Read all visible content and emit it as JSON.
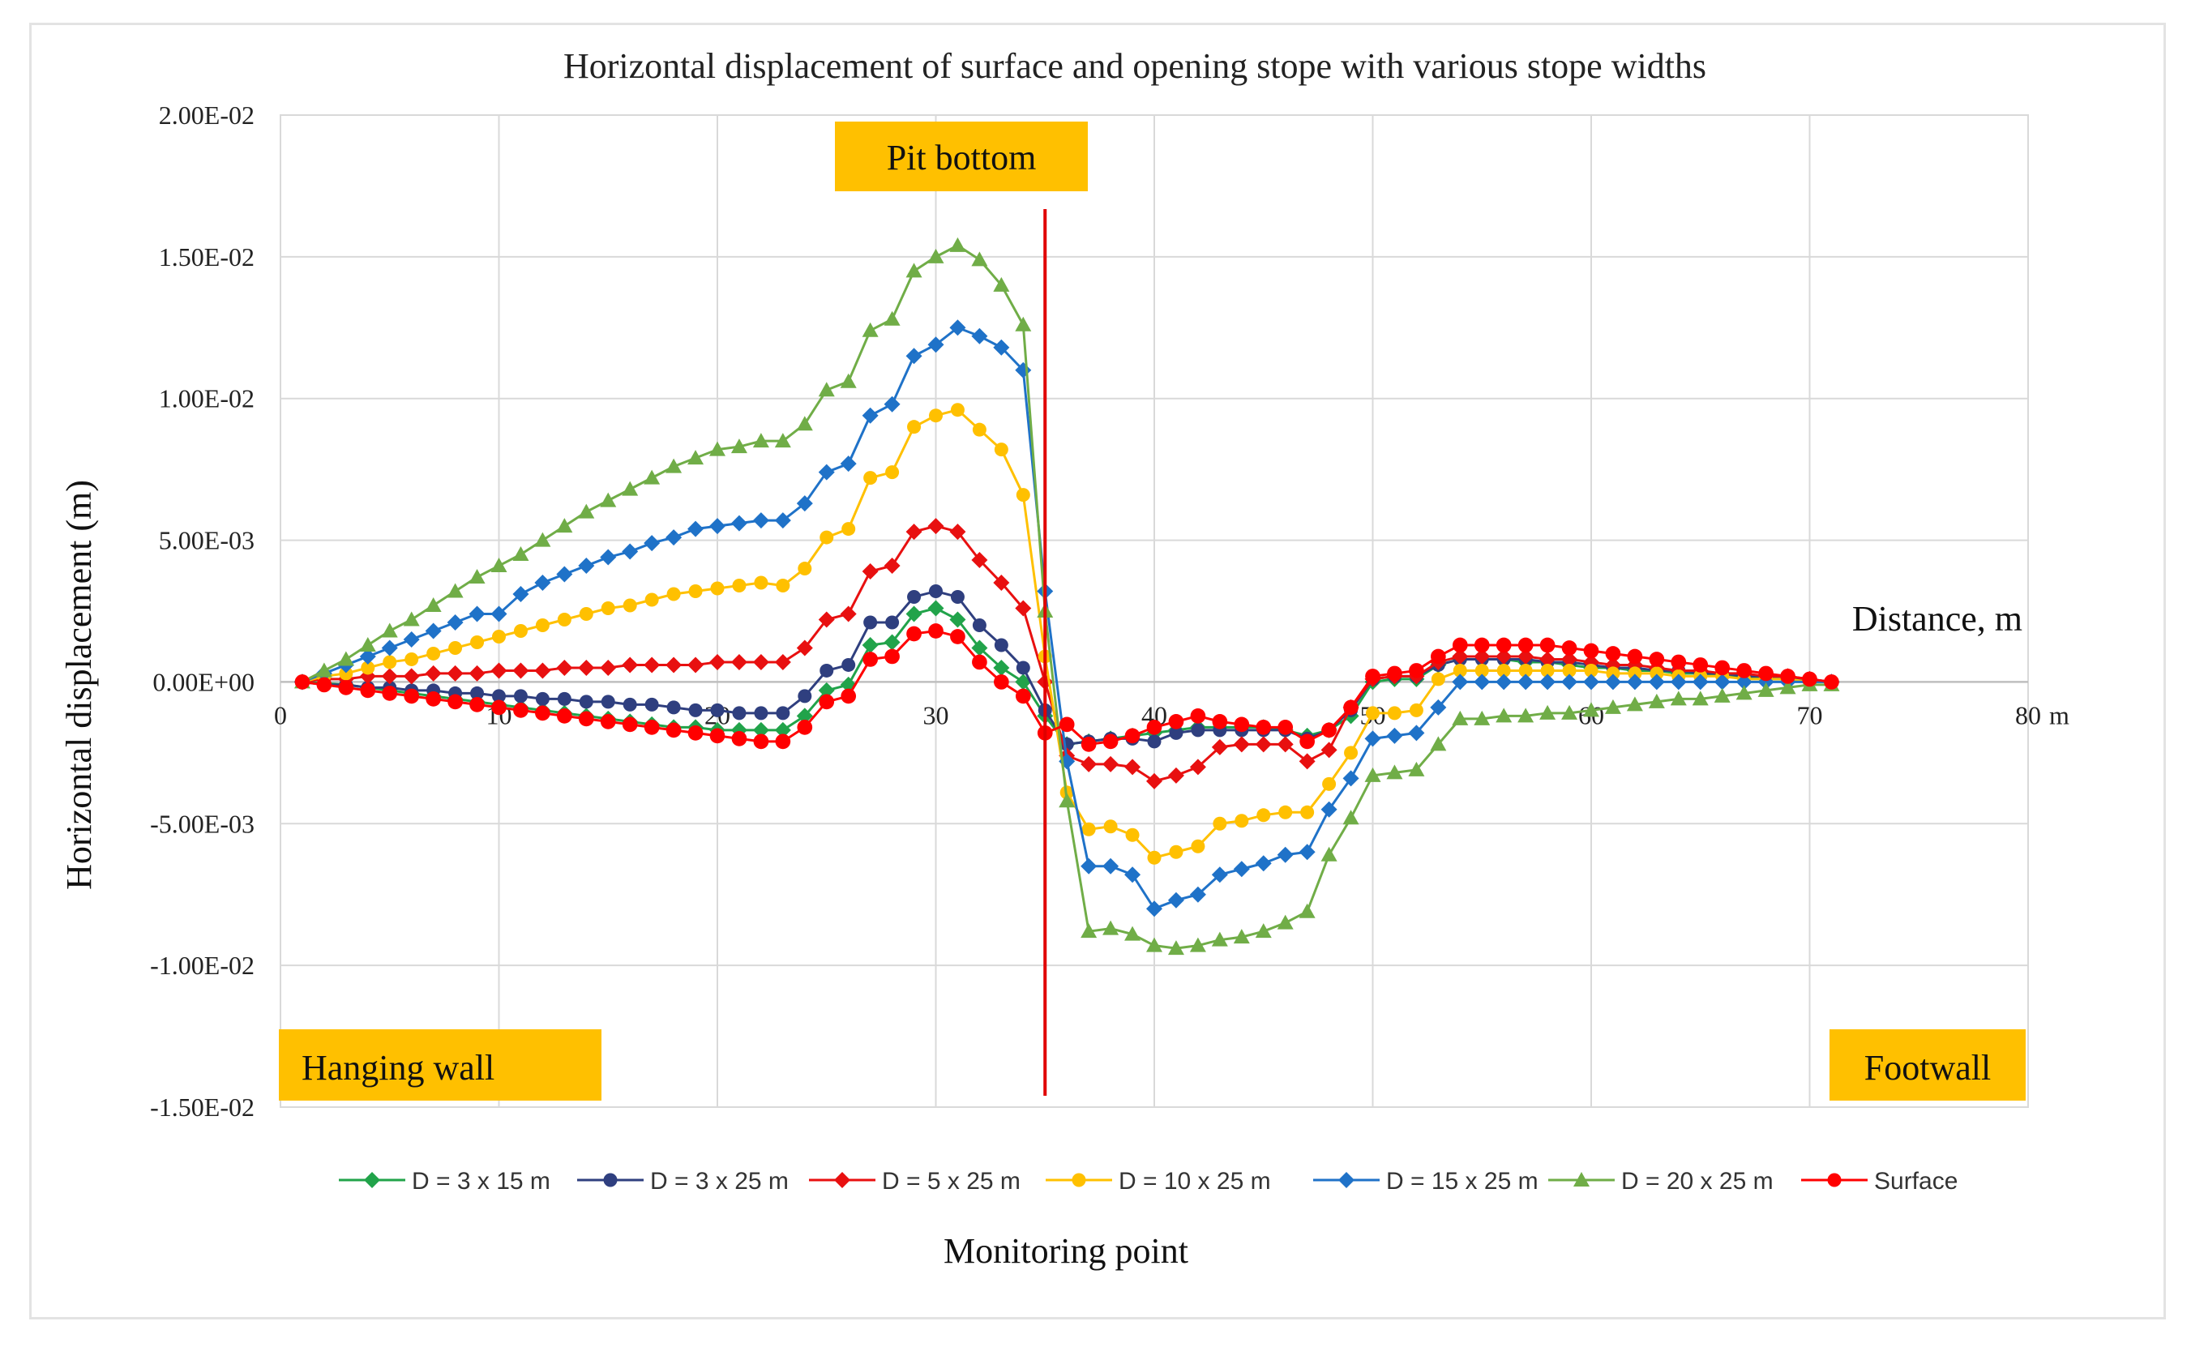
{
  "chart_data": {
    "type": "line",
    "title": "Horizontal displacement of surface and opening stope with various stope widths",
    "xlabel": "Monitoring point",
    "ylabel": "Horizontal displacement (m)",
    "x_axis_annotation": "Distance, m",
    "x_unit_label": "m",
    "xlim": [
      0,
      80
    ],
    "ylim": [
      -0.015,
      0.02
    ],
    "x_ticks": [
      "0",
      "10",
      "20",
      "30",
      "40",
      "50",
      "60",
      "70",
      "80"
    ],
    "y_ticks": [
      "2.00E-02",
      "1.50E-02",
      "1.00E-02",
      "5.00E-03",
      "0.00E+00",
      "-5.00E-03",
      "-1.00E-02",
      "-1.50E-02"
    ],
    "grid": true,
    "legend_position": "bottom",
    "pit_bottom_x": 35,
    "annotations": {
      "pit_bottom": "Pit bottom",
      "hanging_wall": "Hanging wall",
      "footwall": "Footwall"
    },
    "colors": {
      "annotation_box": "#ffc000",
      "pit_line": "#e00000",
      "grid": "#d9d9d9"
    },
    "x": [
      1,
      2,
      3,
      4,
      5,
      6,
      7,
      8,
      9,
      10,
      11,
      12,
      13,
      14,
      15,
      16,
      17,
      18,
      19,
      20,
      21,
      22,
      23,
      24,
      25,
      26,
      27,
      28,
      29,
      30,
      31,
      32,
      33,
      34,
      35,
      36,
      37,
      38,
      39,
      40,
      41,
      42,
      43,
      44,
      45,
      46,
      47,
      48,
      49,
      50,
      51,
      52,
      53,
      54,
      55,
      56,
      57,
      58,
      59,
      60,
      61,
      62,
      63,
      64,
      65,
      66,
      67,
      68,
      69,
      70,
      71
    ],
    "series": [
      {
        "name": "D = 3 x 15  m",
        "color": "#21a34a",
        "marker": "diamond",
        "values": [
          0,
          -5e-05,
          -0.0001,
          -0.0002,
          -0.0003,
          -0.0004,
          -0.0005,
          -0.0006,
          -0.0007,
          -0.0008,
          -0.0009,
          -0.001,
          -0.0011,
          -0.0012,
          -0.0013,
          -0.0014,
          -0.0015,
          -0.0016,
          -0.0016,
          -0.0017,
          -0.0017,
          -0.0017,
          -0.0017,
          -0.0012,
          -0.0003,
          -0.0001,
          0.0013,
          0.0014,
          0.0024,
          0.0026,
          0.0022,
          0.0012,
          0.0005,
          0,
          -0.0012,
          -0.0022,
          -0.0021,
          -0.002,
          -0.0019,
          -0.0018,
          -0.0017,
          -0.0016,
          -0.0016,
          -0.0016,
          -0.0016,
          -0.0017,
          -0.0019,
          -0.0017,
          -0.0012,
          0,
          0.0001,
          0.0001,
          0.0006,
          0.0008,
          0.0008,
          0.0008,
          0.0007,
          0.0007,
          0.0006,
          0.0005,
          0.0005,
          0.0004,
          0.0004,
          0.0003,
          0.0003,
          0.0002,
          0.0002,
          0.0001,
          0.0001,
          0,
          0
        ]
      },
      {
        "name": "D = 3 x 25 m",
        "color": "#2f3f7f",
        "marker": "circle",
        "values": [
          0,
          -0.0001,
          -0.0001,
          -0.0002,
          -0.0002,
          -0.0003,
          -0.0003,
          -0.0004,
          -0.0004,
          -0.0005,
          -0.0005,
          -0.0006,
          -0.0006,
          -0.0007,
          -0.0007,
          -0.0008,
          -0.0008,
          -0.0009,
          -0.001,
          -0.001,
          -0.0011,
          -0.0011,
          -0.0011,
          -0.0005,
          0.0004,
          0.0006,
          0.0021,
          0.0021,
          0.003,
          0.0032,
          0.003,
          0.002,
          0.0013,
          0.0005,
          -0.001,
          -0.0022,
          -0.0021,
          -0.002,
          -0.002,
          -0.0021,
          -0.0018,
          -0.0017,
          -0.0017,
          -0.0017,
          -0.0017,
          -0.0017,
          -0.002,
          -0.0017,
          -0.001,
          0.0001,
          0.0002,
          0.0002,
          0.0006,
          0.0008,
          0.0008,
          0.0008,
          0.0008,
          0.0007,
          0.0007,
          0.0006,
          0.0005,
          0.0005,
          0.0004,
          0.0004,
          0.0003,
          0.0003,
          0.0002,
          0.0002,
          0.0001,
          0.0001,
          0
        ]
      },
      {
        "name": "D = 5 x 25  m",
        "color": "#e81010",
        "marker": "diamond",
        "values": [
          0,
          0.0001,
          0.0001,
          0.0002,
          0.0002,
          0.0002,
          0.0003,
          0.0003,
          0.0003,
          0.0004,
          0.0004,
          0.0004,
          0.0005,
          0.0005,
          0.0005,
          0.0006,
          0.0006,
          0.0006,
          0.0006,
          0.0007,
          0.0007,
          0.0007,
          0.0007,
          0.0012,
          0.0022,
          0.0024,
          0.0039,
          0.0041,
          0.0053,
          0.0055,
          0.0053,
          0.0043,
          0.0035,
          0.0026,
          0,
          -0.0026,
          -0.0029,
          -0.0029,
          -0.003,
          -0.0035,
          -0.0033,
          -0.003,
          -0.0023,
          -0.0022,
          -0.0022,
          -0.0022,
          -0.0028,
          -0.0024,
          -0.0009,
          0.0001,
          0.0002,
          0.0002,
          0.0007,
          0.0009,
          0.0009,
          0.0009,
          0.0009,
          0.0008,
          0.0008,
          0.0007,
          0.0006,
          0.0006,
          0.0005,
          0.0004,
          0.0004,
          0.0003,
          0.0003,
          0.0002,
          0.0002,
          0.0001,
          0
        ]
      },
      {
        "name": "D = 10 x 25  m",
        "color": "#ffc000",
        "marker": "circle",
        "values": [
          0,
          0.0002,
          0.0003,
          0.0005,
          0.0007,
          0.0008,
          0.001,
          0.0012,
          0.0014,
          0.0016,
          0.0018,
          0.002,
          0.0022,
          0.0024,
          0.0026,
          0.0027,
          0.0029,
          0.0031,
          0.0032,
          0.0033,
          0.0034,
          0.0035,
          0.0034,
          0.004,
          0.0051,
          0.0054,
          0.0072,
          0.0074,
          0.009,
          0.0094,
          0.0096,
          0.0089,
          0.0082,
          0.0066,
          0.0009,
          -0.0039,
          -0.0052,
          -0.0051,
          -0.0054,
          -0.0062,
          -0.006,
          -0.0058,
          -0.005,
          -0.0049,
          -0.0047,
          -0.0046,
          -0.0046,
          -0.0036,
          -0.0025,
          -0.0011,
          -0.0011,
          -0.001,
          0.0001,
          0.0004,
          0.0004,
          0.0004,
          0.0004,
          0.0004,
          0.0004,
          0.0004,
          0.0003,
          0.0003,
          0.0003,
          0.0002,
          0.0002,
          0.0002,
          0.0001,
          0.0001,
          0.0001,
          0,
          0
        ]
      },
      {
        "name": "D = 15 x 25  m",
        "color": "#1f72c8",
        "marker": "diamond",
        "values": [
          0,
          0.0003,
          0.0006,
          0.0009,
          0.0012,
          0.0015,
          0.0018,
          0.0021,
          0.0024,
          0.0024,
          0.0031,
          0.0035,
          0.0038,
          0.0041,
          0.0044,
          0.0046,
          0.0049,
          0.0051,
          0.0054,
          0.0055,
          0.0056,
          0.0057,
          0.0057,
          0.0063,
          0.0074,
          0.0077,
          0.0094,
          0.0098,
          0.0115,
          0.0119,
          0.0125,
          0.0122,
          0.0118,
          0.011,
          0.0032,
          -0.0028,
          -0.0065,
          -0.0065,
          -0.0068,
          -0.008,
          -0.0077,
          -0.0075,
          -0.0068,
          -0.0066,
          -0.0064,
          -0.0061,
          -0.006,
          -0.0045,
          -0.0034,
          -0.002,
          -0.0019,
          -0.0018,
          -0.0009,
          0,
          0,
          0,
          0,
          0,
          0,
          0,
          0,
          0,
          0,
          0,
          0,
          0,
          0,
          0,
          0,
          0,
          0
        ]
      },
      {
        "name": "D = 20 x 25  m",
        "color": "#70ad47",
        "marker": "triangle",
        "values": [
          0,
          0.0004,
          0.0008,
          0.0013,
          0.0018,
          0.0022,
          0.0027,
          0.0032,
          0.0037,
          0.0041,
          0.0045,
          0.005,
          0.0055,
          0.006,
          0.0064,
          0.0068,
          0.0072,
          0.0076,
          0.0079,
          0.0082,
          0.0083,
          0.0085,
          0.0085,
          0.0091,
          0.0103,
          0.0106,
          0.0124,
          0.0128,
          0.0145,
          0.015,
          0.0154,
          0.0149,
          0.014,
          0.0126,
          0.0025,
          -0.0042,
          -0.0088,
          -0.0087,
          -0.0089,
          -0.0093,
          -0.0094,
          -0.0093,
          -0.0091,
          -0.009,
          -0.0088,
          -0.0085,
          -0.0081,
          -0.0061,
          -0.0048,
          -0.0033,
          -0.0032,
          -0.0031,
          -0.0022,
          -0.0013,
          -0.0013,
          -0.0012,
          -0.0012,
          -0.0011,
          -0.0011,
          -0.001,
          -0.0009,
          -0.0008,
          -0.0007,
          -0.0006,
          -0.0006,
          -0.0005,
          -0.0004,
          -0.0003,
          -0.0002,
          -0.0001,
          -0.0001
        ]
      },
      {
        "name": "Surface",
        "color": "#ff0000",
        "marker": "circle",
        "values": [
          0,
          -0.0001,
          -0.0002,
          -0.0003,
          -0.0004,
          -0.0005,
          -0.0006,
          -0.0007,
          -0.0008,
          -0.0009,
          -0.001,
          -0.0011,
          -0.0012,
          -0.0013,
          -0.0014,
          -0.0015,
          -0.0016,
          -0.0017,
          -0.0018,
          -0.0019,
          -0.002,
          -0.0021,
          -0.0021,
          -0.0016,
          -0.0007,
          -0.0005,
          0.0008,
          0.0009,
          0.0017,
          0.0018,
          0.0016,
          0.0007,
          0,
          -0.0005,
          -0.0018,
          -0.0015,
          -0.0022,
          -0.0021,
          -0.0019,
          -0.0016,
          -0.0014,
          -0.0012,
          -0.0014,
          -0.0015,
          -0.0016,
          -0.0016,
          -0.0021,
          -0.0017,
          -0.0009,
          0.0002,
          0.0003,
          0.0004,
          0.0009,
          0.0013,
          0.0013,
          0.0013,
          0.0013,
          0.0013,
          0.0012,
          0.0011,
          0.001,
          0.0009,
          0.0008,
          0.0007,
          0.0006,
          0.0005,
          0.0004,
          0.0003,
          0.0002,
          0.0001,
          0
        ]
      }
    ]
  }
}
